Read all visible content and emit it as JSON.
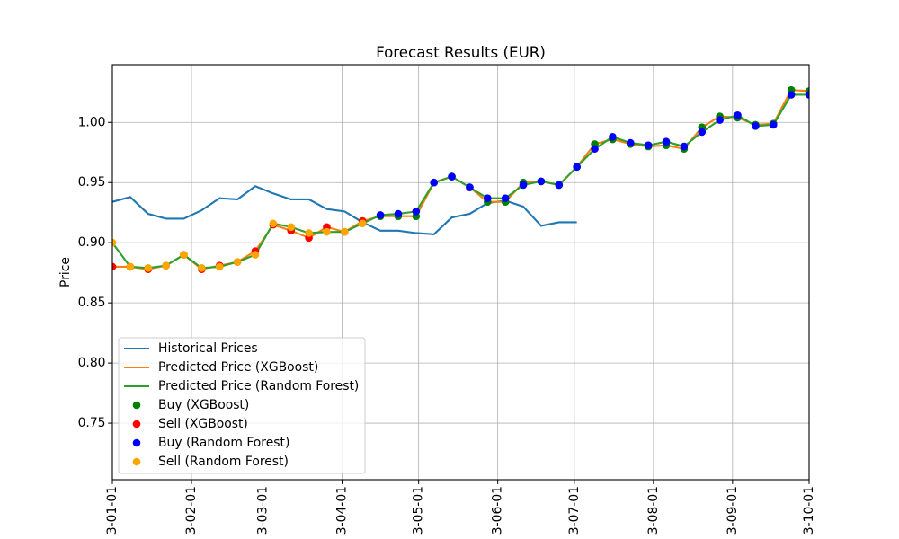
{
  "chart_data": {
    "type": "line",
    "title": "Forecast Results (EUR)",
    "ylabel": "Price",
    "xlim": [
      "2023-01-01",
      "2023-10-01"
    ],
    "ylim": [
      0.703,
      1.048
    ],
    "grid": true,
    "legend_position": "lower left",
    "xticks": [
      "2023-01-01",
      "2023-02-01",
      "2023-03-01",
      "2023-04-01",
      "2023-05-01",
      "2023-06-01",
      "2023-07-01",
      "2023-08-01",
      "2023-09-01",
      "2023-10-01"
    ],
    "xticklabels": [
      "3-01-01",
      "3-02-01",
      "3-03-01",
      "3-04-01",
      "3-05-01",
      "3-06-01",
      "3-07-01",
      "3-08-01",
      "3-09-01",
      "3-10-01"
    ],
    "yticks": [
      0.75,
      0.8,
      0.85,
      0.9,
      0.95,
      1.0
    ],
    "yticklabels": [
      "0.75",
      "0.80",
      "0.85",
      "0.90",
      "0.95",
      "1.00"
    ],
    "series": [
      {
        "name": "Historical Prices",
        "type": "line",
        "color": "#1f77b4",
        "x": [
          "2023-01-01",
          "2023-01-08",
          "2023-01-15",
          "2023-01-22",
          "2023-01-29",
          "2023-02-05",
          "2023-02-12",
          "2023-02-19",
          "2023-02-26",
          "2023-03-05",
          "2023-03-12",
          "2023-03-19",
          "2023-03-26",
          "2023-04-02",
          "2023-04-09",
          "2023-04-16",
          "2023-04-23",
          "2023-04-30",
          "2023-05-07",
          "2023-05-14",
          "2023-05-21",
          "2023-05-28",
          "2023-06-04",
          "2023-06-11",
          "2023-06-18",
          "2023-06-25",
          "2023-07-02"
        ],
        "y": [
          0.934,
          0.938,
          0.924,
          0.92,
          0.92,
          0.927,
          0.937,
          0.936,
          0.947,
          0.941,
          0.936,
          0.936,
          0.928,
          0.926,
          0.917,
          0.91,
          0.91,
          0.908,
          0.907,
          0.921,
          0.924,
          0.933,
          0.935,
          0.93,
          0.914,
          0.917,
          0.917
        ]
      },
      {
        "name": "Predicted Price (XGBoost)",
        "type": "line",
        "color": "#ff7f0e",
        "x": [
          "2023-01-01",
          "2023-01-08",
          "2023-01-15",
          "2023-01-22",
          "2023-01-29",
          "2023-02-05",
          "2023-02-12",
          "2023-02-19",
          "2023-02-26",
          "2023-03-05",
          "2023-03-12",
          "2023-03-19",
          "2023-03-26",
          "2023-04-02",
          "2023-04-09",
          "2023-04-16",
          "2023-04-23",
          "2023-04-30",
          "2023-05-07",
          "2023-05-14",
          "2023-05-21",
          "2023-05-28",
          "2023-06-04",
          "2023-06-11",
          "2023-06-18",
          "2023-06-25",
          "2023-07-02",
          "2023-07-09",
          "2023-07-16",
          "2023-07-23",
          "2023-07-30",
          "2023-08-06",
          "2023-08-13",
          "2023-08-20",
          "2023-08-27",
          "2023-09-03",
          "2023-09-10",
          "2023-09-17",
          "2023-09-24",
          "2023-10-01"
        ],
        "y": [
          0.88,
          0.88,
          0.878,
          0.881,
          0.89,
          0.878,
          0.881,
          0.884,
          0.893,
          0.915,
          0.91,
          0.904,
          0.913,
          0.909,
          0.918,
          0.922,
          0.922,
          0.922,
          0.95,
          0.955,
          0.946,
          0.934,
          0.934,
          0.95,
          0.951,
          0.948,
          0.963,
          0.982,
          0.986,
          0.982,
          0.98,
          0.981,
          0.978,
          0.996,
          1.005,
          1.004,
          0.998,
          0.999,
          1.027,
          1.026
        ]
      },
      {
        "name": "Predicted Price (Random Forest)",
        "type": "line",
        "color": "#2ca02c",
        "x": [
          "2023-01-01",
          "2023-01-08",
          "2023-01-15",
          "2023-01-22",
          "2023-01-29",
          "2023-02-05",
          "2023-02-12",
          "2023-02-19",
          "2023-02-26",
          "2023-03-05",
          "2023-03-12",
          "2023-03-19",
          "2023-03-26",
          "2023-04-02",
          "2023-04-09",
          "2023-04-16",
          "2023-04-23",
          "2023-04-30",
          "2023-05-07",
          "2023-05-14",
          "2023-05-21",
          "2023-05-28",
          "2023-06-04",
          "2023-06-11",
          "2023-06-18",
          "2023-06-25",
          "2023-07-02",
          "2023-07-09",
          "2023-07-16",
          "2023-07-23",
          "2023-07-30",
          "2023-08-06",
          "2023-08-13",
          "2023-08-20",
          "2023-08-27",
          "2023-09-03",
          "2023-09-10",
          "2023-09-17",
          "2023-09-24",
          "2023-10-01"
        ],
        "y": [
          0.9,
          0.88,
          0.879,
          0.881,
          0.89,
          0.879,
          0.88,
          0.884,
          0.89,
          0.916,
          0.913,
          0.908,
          0.909,
          0.909,
          0.916,
          0.923,
          0.924,
          0.926,
          0.95,
          0.955,
          0.946,
          0.937,
          0.937,
          0.948,
          0.951,
          0.948,
          0.963,
          0.978,
          0.988,
          0.983,
          0.981,
          0.984,
          0.98,
          0.992,
          1.002,
          1.006,
          0.997,
          0.998,
          1.023,
          1.023
        ]
      },
      {
        "name": "Buy (XGBoost)",
        "type": "scatter",
        "color": "#008000",
        "x": [
          "2023-04-16",
          "2023-04-23",
          "2023-04-30",
          "2023-05-07",
          "2023-05-14",
          "2023-05-21",
          "2023-05-28",
          "2023-06-04",
          "2023-06-11",
          "2023-06-18",
          "2023-06-25",
          "2023-07-02",
          "2023-07-09",
          "2023-07-16",
          "2023-07-23",
          "2023-07-30",
          "2023-08-06",
          "2023-08-13",
          "2023-08-20",
          "2023-08-27",
          "2023-09-03",
          "2023-09-10",
          "2023-09-17",
          "2023-09-24",
          "2023-10-01"
        ],
        "y": [
          0.922,
          0.922,
          0.922,
          0.95,
          0.955,
          0.946,
          0.934,
          0.934,
          0.95,
          0.951,
          0.948,
          0.963,
          0.982,
          0.986,
          0.982,
          0.98,
          0.981,
          0.978,
          0.996,
          1.005,
          1.004,
          0.998,
          0.999,
          1.027,
          1.026
        ]
      },
      {
        "name": "Sell (XGBoost)",
        "type": "scatter",
        "color": "#ff0000",
        "x": [
          "2023-01-01",
          "2023-01-08",
          "2023-01-15",
          "2023-01-22",
          "2023-01-29",
          "2023-02-05",
          "2023-02-12",
          "2023-02-19",
          "2023-02-26",
          "2023-03-05",
          "2023-03-12",
          "2023-03-19",
          "2023-03-26",
          "2023-04-02",
          "2023-04-09"
        ],
        "y": [
          0.88,
          0.88,
          0.878,
          0.881,
          0.89,
          0.878,
          0.881,
          0.884,
          0.893,
          0.915,
          0.91,
          0.904,
          0.913,
          0.909,
          0.918
        ]
      },
      {
        "name": "Buy (Random Forest)",
        "type": "scatter",
        "color": "#0000ff",
        "x": [
          "2023-04-16",
          "2023-04-23",
          "2023-04-30",
          "2023-05-07",
          "2023-05-14",
          "2023-05-21",
          "2023-05-28",
          "2023-06-04",
          "2023-06-11",
          "2023-06-18",
          "2023-06-25",
          "2023-07-02",
          "2023-07-09",
          "2023-07-16",
          "2023-07-23",
          "2023-07-30",
          "2023-08-06",
          "2023-08-13",
          "2023-08-20",
          "2023-08-27",
          "2023-09-03",
          "2023-09-10",
          "2023-09-17",
          "2023-09-24",
          "2023-10-01"
        ],
        "y": [
          0.923,
          0.924,
          0.926,
          0.95,
          0.955,
          0.946,
          0.937,
          0.937,
          0.948,
          0.951,
          0.948,
          0.963,
          0.978,
          0.988,
          0.983,
          0.981,
          0.984,
          0.98,
          0.992,
          1.002,
          1.006,
          0.997,
          0.998,
          1.023,
          1.023
        ]
      },
      {
        "name": "Sell (Random Forest)",
        "type": "scatter",
        "color": "#ffa500",
        "x": [
          "2023-01-01",
          "2023-01-08",
          "2023-01-15",
          "2023-01-22",
          "2023-01-29",
          "2023-02-05",
          "2023-02-12",
          "2023-02-19",
          "2023-02-26",
          "2023-03-05",
          "2023-03-12",
          "2023-03-19",
          "2023-03-26",
          "2023-04-02",
          "2023-04-09"
        ],
        "y": [
          0.9,
          0.88,
          0.879,
          0.881,
          0.89,
          0.879,
          0.88,
          0.884,
          0.89,
          0.916,
          0.913,
          0.908,
          0.909,
          0.909,
          0.916
        ]
      }
    ]
  }
}
